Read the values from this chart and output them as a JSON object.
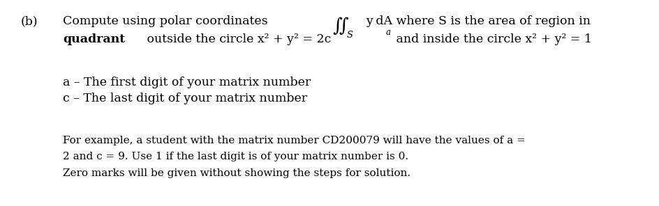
{
  "background_color": "#ffffff",
  "fig_width": 9.45,
  "fig_height": 2.96,
  "dpi": 100,
  "font_family": "DejaVu Serif",
  "font_size": 12.5,
  "font_size_small": 11.0,
  "label_b": "(b)",
  "label_b_xpx": 30,
  "label_b_ypx": 22,
  "indent_xpx": 90,
  "line1_ypx": 22,
  "line2_ypx": 48,
  "line3_ypx": 110,
  "line4_ypx": 133,
  "line5_ypx": 195,
  "line6_ypx": 218,
  "line7_ypx": 242,
  "text_line3": "a – The first digit of your matrix number",
  "text_line4": "c – The last digit of your matrix number",
  "text_line5": "For example, a student with the matrix number CD200079 will have the values of a =",
  "text_line6": "2 and c = 9. Use 1 if the last digit is of your matrix number is 0.",
  "text_line7": "Zero marks will be given without showing the steps for solution."
}
